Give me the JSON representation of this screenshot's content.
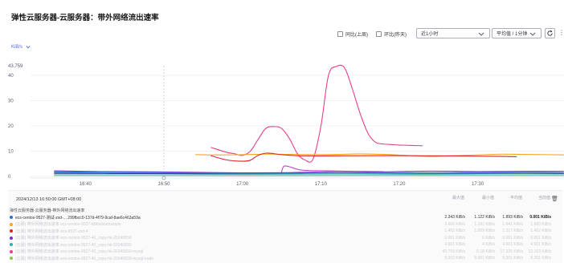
{
  "page": {
    "title": "弹性云服务器-云服务器：带外网络流出速率"
  },
  "toolbar": {
    "compare_yesterday": "同比(上周)",
    "compare_prev": "环比(昨天)",
    "time_range": "近1小时",
    "aggregation": "平均值 / 1分钟",
    "unit": "KiB/s"
  },
  "chart_data": {
    "type": "line",
    "title": "",
    "xlabel": "",
    "ylabel": "KiB/s",
    "max_label": "43.759",
    "ylim": [
      0,
      43.759
    ],
    "yticks": [
      0,
      10,
      20,
      30,
      40
    ],
    "x_range": [
      "16:33",
      "17:41"
    ],
    "xticks": [
      "16:40",
      "16:50",
      "17:00",
      "17:10",
      "17:20",
      "17:30"
    ],
    "cursor_time": "16:50",
    "grid": "horizontal",
    "series": [
      {
        "color": "#e83e8c",
        "points": [
          [
            16.933,
            11.5
          ],
          [
            16.967,
            9.5
          ],
          [
            16.983,
            9.0
          ],
          [
            17.0,
            8.3
          ],
          [
            17.017,
            10.0
          ],
          [
            17.033,
            14.5
          ],
          [
            17.05,
            19.0
          ],
          [
            17.067,
            19.7
          ],
          [
            17.083,
            19.0
          ],
          [
            17.1,
            15.0
          ],
          [
            17.117,
            9.0
          ],
          [
            17.133,
            6.5
          ],
          [
            17.15,
            6.8
          ],
          [
            17.167,
            20.0
          ],
          [
            17.183,
            40.0
          ],
          [
            17.2,
            43.5
          ],
          [
            17.217,
            43.0
          ],
          [
            17.233,
            35.0
          ],
          [
            17.25,
            25.0
          ],
          [
            17.267,
            17.0
          ],
          [
            17.283,
            13.5
          ],
          [
            17.3,
            12.8
          ],
          [
            17.317,
            12.6
          ],
          [
            17.333,
            12.4
          ],
          [
            17.35,
            12.3
          ],
          [
            17.367,
            12.2
          ],
          [
            17.383,
            12.1
          ]
        ]
      },
      {
        "color": "#f5a623",
        "points": [
          [
            16.9,
            8.6
          ],
          [
            16.95,
            8.5
          ],
          [
            17.0,
            8.6
          ],
          [
            17.05,
            8.8
          ],
          [
            17.1,
            8.7
          ],
          [
            17.15,
            8.6
          ],
          [
            17.2,
            8.7
          ],
          [
            17.25,
            8.9
          ],
          [
            17.3,
            8.7
          ],
          [
            17.35,
            8.3
          ],
          [
            17.4,
            7.9
          ],
          [
            17.45,
            8.2
          ],
          [
            17.483,
            8.4
          ],
          [
            17.517,
            8.6
          ],
          [
            17.55,
            8.8
          ],
          [
            17.6,
            8.7
          ],
          [
            17.65,
            8.6
          ],
          [
            17.683,
            8.5
          ]
        ]
      },
      {
        "color": "#e02424",
        "points": [
          [
            16.933,
            8.2
          ],
          [
            16.967,
            6.5
          ],
          [
            17.0,
            6.0
          ],
          [
            17.017,
            6.4
          ],
          [
            17.033,
            8.3
          ],
          [
            17.05,
            9.2
          ],
          [
            17.067,
            9.0
          ],
          [
            17.083,
            8.6
          ],
          [
            17.117,
            8.2
          ],
          [
            17.167,
            8.1
          ],
          [
            17.25,
            8.2
          ],
          [
            17.35,
            8.2
          ],
          [
            17.45,
            8.1
          ],
          [
            17.55,
            7.9
          ],
          [
            17.583,
            7.8
          ]
        ]
      },
      {
        "color": "#c040c0",
        "points": [
          [
            17.083,
            1.5
          ],
          [
            17.088,
            4.0
          ],
          [
            17.1,
            3.8
          ],
          [
            17.117,
            2.8
          ],
          [
            17.133,
            2.4
          ],
          [
            17.183,
            2.2
          ],
          [
            17.233,
            2.0
          ],
          [
            17.3,
            1.9
          ]
        ]
      },
      {
        "color": "#7b2fd0",
        "points": [
          [
            16.6,
            2.2
          ],
          [
            16.7,
            1.9
          ],
          [
            16.8,
            1.8
          ],
          [
            16.9,
            1.6
          ],
          [
            17.0,
            1.4
          ],
          [
            17.1,
            1.5
          ],
          [
            17.2,
            1.9
          ],
          [
            17.3,
            1.8
          ],
          [
            17.4,
            2.1
          ],
          [
            17.5,
            1.9
          ],
          [
            17.6,
            2.0
          ],
          [
            17.683,
            2.0
          ]
        ]
      },
      {
        "color": "#2e6fd8",
        "points": [
          [
            16.6,
            1.8
          ],
          [
            16.8,
            1.6
          ],
          [
            17.0,
            1.2
          ],
          [
            17.2,
            1.4
          ],
          [
            17.4,
            1.5
          ],
          [
            17.6,
            1.6
          ],
          [
            17.683,
            1.5
          ]
        ]
      },
      {
        "color": "#2bb6b1",
        "points": [
          [
            16.6,
            1.5
          ],
          [
            16.8,
            1.2
          ],
          [
            17.0,
            1.1
          ],
          [
            17.2,
            1.0
          ],
          [
            17.4,
            1.1
          ],
          [
            17.6,
            1.3
          ],
          [
            17.683,
            1.2
          ]
        ]
      },
      {
        "color": "#1d3a8a",
        "points": [
          [
            16.6,
            1.2
          ],
          [
            16.8,
            1.1
          ],
          [
            17.0,
            0.9
          ],
          [
            17.2,
            0.8
          ],
          [
            17.4,
            0.9
          ],
          [
            17.6,
            1.0
          ],
          [
            17.683,
            1.0
          ]
        ]
      },
      {
        "color": "#88c34a",
        "points": [
          [
            16.6,
            0.8
          ],
          [
            16.8,
            0.7
          ],
          [
            17.0,
            0.7
          ],
          [
            17.2,
            0.8
          ],
          [
            17.4,
            0.7
          ],
          [
            17.6,
            0.9
          ],
          [
            17.683,
            0.8
          ]
        ]
      },
      {
        "color": "#d8d2c4",
        "points": [
          [
            16.6,
            0.6
          ],
          [
            16.8,
            0.6
          ],
          [
            17.0,
            0.5
          ],
          [
            17.2,
            0.6
          ],
          [
            17.4,
            0.6
          ],
          [
            17.6,
            0.7
          ],
          [
            17.683,
            0.6
          ]
        ]
      },
      {
        "color": "#a0d8ef",
        "points": [
          [
            16.6,
            0.4
          ],
          [
            16.8,
            0.4
          ],
          [
            17.0,
            0.3
          ],
          [
            17.2,
            0.4
          ],
          [
            17.4,
            0.5
          ],
          [
            17.6,
            0.5
          ],
          [
            17.683,
            0.4
          ]
        ]
      },
      {
        "color": "#6fcf97",
        "points": [
          [
            16.6,
            0.3
          ],
          [
            16.8,
            0.3
          ],
          [
            17.0,
            0.2
          ],
          [
            17.2,
            0.3
          ],
          [
            17.4,
            0.3
          ],
          [
            17.6,
            0.3
          ],
          [
            17.683,
            0.3
          ]
        ]
      }
    ]
  },
  "legend": {
    "timestamp": "2024/12/13 16:50:00 GMT+08:00",
    "col_max": "最大值",
    "col_min": "最小值",
    "col_avg": "平均值",
    "col_current": "当前值",
    "group_label": "弹性云服务器-云服务器-带外网络流出速率",
    "rows": [
      {
        "name": "ecs-centos-9527-测试-zxd-...  299fbcc0-137d-4f79-9caf-8ae6c463a59a",
        "max": "2.343 KiB/s",
        "min": "1.122 KiB/s",
        "avg": "1.893 KiB/s",
        "cur": "0.001 KiB/s",
        "color": "#2e6fd8",
        "style": "active"
      },
      {
        "name": "(云服) 带外网络流出速率 ecs-centos-9527-kibibytes/sample",
        "max": "3.606 KiB/s",
        "min": "1.101 KiB/s",
        "avg": "1.841 KiB/s",
        "cur": "1.683 KiB/s",
        "color": "#f5a623",
        "style": "faded"
      },
      {
        "name": "(云服) 带外网络流出速率 ecs-9527-zxd-4",
        "max": "1.452 KiB/s",
        "min": "1.009 KiB/s",
        "avg": "1.317 KiB/s",
        "cur": "1.452 KiB/s",
        "color": "#e02424",
        "style": "faded"
      },
      {
        "name": "(云服) 带外网络流出速率 ecs-centos-9527-40_copy-hk-20240830",
        "max": "0.001 KiB/s",
        "min": "0 KiB/s",
        "avg": "0.001 KiB/s",
        "cur": "0.001 KiB/s",
        "color": "#7b2fd0",
        "style": "faded"
      },
      {
        "name": "(云服) 带外网络流出速率 ecs-centos-9527-40_copy-hk-20240830",
        "max": "4.601 KiB/s",
        "min": "4 KiB/s",
        "avg": "4.601 KiB/s",
        "cur": "4.601 KiB/s",
        "color": "#2bb6b1",
        "style": "faded"
      },
      {
        "name": "(云服) 带外网络流出速率 ecs-centos-9527-40_copy-hk-20240830-mysql",
        "max": "43.759 KiB/s",
        "min": "6.18 KiB/s",
        "avg": "17.325 KiB/s",
        "cur": "12.163 KiB/s",
        "color": "#e83e8c",
        "style": "faded"
      },
      {
        "name": "(云服) 带外网络流出速率 ecs-centos-9527-40_copy-hk-20240830-mysql-node",
        "max": "9.202 KiB/s",
        "min": "6.001 KiB/s",
        "avg": "8.201 KiB/s",
        "cur": "8.201 KiB/s",
        "color": "#88c34a",
        "style": "faded"
      }
    ]
  }
}
